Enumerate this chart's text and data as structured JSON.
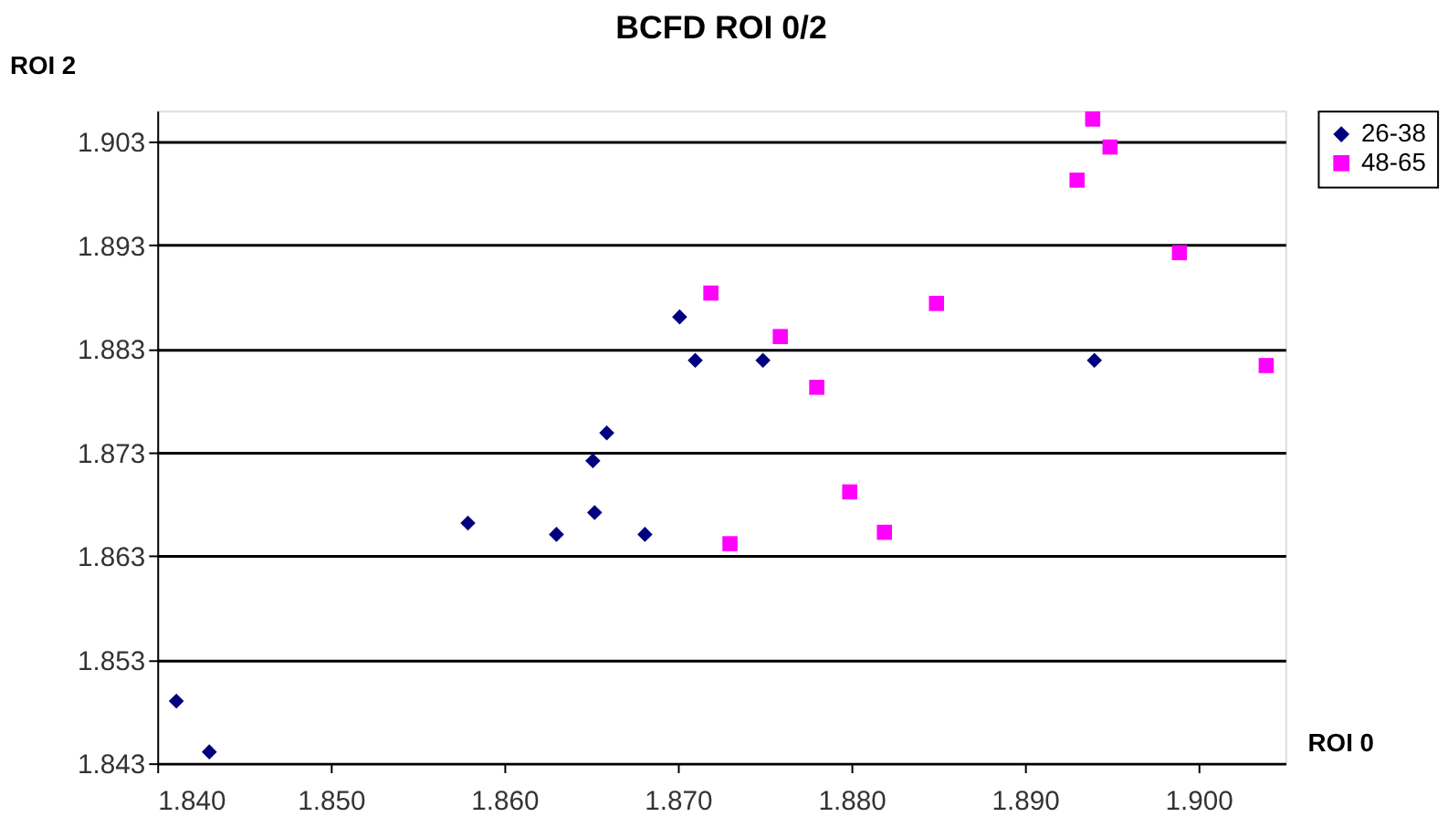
{
  "chart_data": {
    "type": "scatter",
    "title": "BCFD ROI 0/2",
    "xlabel": "ROI 0",
    "ylabel": "ROI 2",
    "xlim": [
      1.84,
      1.905
    ],
    "ylim": [
      1.843,
      1.906
    ],
    "xticks": [
      {
        "value": 1.84,
        "label": "1.840"
      },
      {
        "value": 1.85,
        "label": "1.850"
      },
      {
        "value": 1.86,
        "label": "1.860"
      },
      {
        "value": 1.87,
        "label": "1.870"
      },
      {
        "value": 1.88,
        "label": "1.880"
      },
      {
        "value": 1.89,
        "label": "1.890"
      },
      {
        "value": 1.9,
        "label": "1.900"
      }
    ],
    "yticks": [
      1.843,
      1.853,
      1.863,
      1.873,
      1.883,
      1.893,
      1.903
    ],
    "grid": "y",
    "legend": "right",
    "series": [
      {
        "name": "26-38",
        "color": "#000080",
        "marker": "diamond",
        "x": [
          1.8411,
          1.843,
          1.8579,
          1.863,
          1.8652,
          1.8651,
          1.8659,
          1.8681,
          1.8701,
          1.871,
          1.8749,
          1.894
        ],
        "values": [
          1.849,
          1.8441,
          1.8662,
          1.8651,
          1.8672,
          1.8722,
          1.8749,
          1.8651,
          1.8861,
          1.8819,
          1.8819,
          1.8819
        ]
      },
      {
        "name": "48-65",
        "color": "#ff00ff",
        "marker": "square",
        "x": [
          1.8719,
          1.8759,
          1.878,
          1.8849,
          1.893,
          1.8939,
          1.8949,
          1.8989,
          1.9039,
          1.873,
          1.8799,
          1.8819
        ],
        "values": [
          1.8884,
          1.8842,
          1.8793,
          1.8874,
          1.8993,
          1.9052,
          1.9025,
          1.8923,
          1.8814,
          1.8642,
          1.8692,
          1.8653
        ]
      }
    ]
  }
}
